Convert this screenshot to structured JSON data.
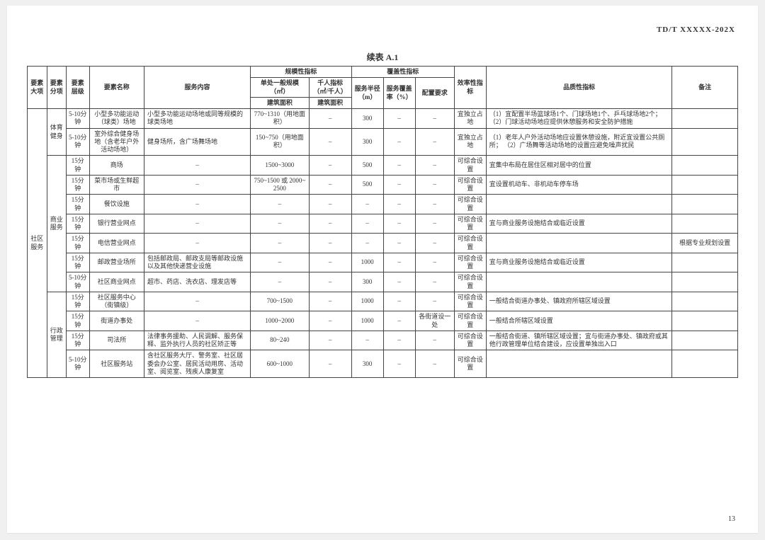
{
  "header": {
    "doc_id": "TD/T  XXXXX-202X",
    "table_title": "续表 A.1"
  },
  "footer": {
    "page_no": "13"
  },
  "cols": {
    "major": "要素大项",
    "sub": "要素分项",
    "level": "要素层级",
    "name": "要素名称",
    "content": "服务内容",
    "scale_group": "规模性指标",
    "coverage_group": "覆盖性指标",
    "scale_unit": "单处一般规模（㎡）",
    "per1000": "千人指标（㎡/千人）",
    "build_area": "建筑面积",
    "radius": "服务半径（m）",
    "coverage_rate": "服务覆盖率（%）",
    "config_req": "配置要求",
    "efficiency": "效率性指标",
    "quality": "品质性指标",
    "remark": "备注"
  },
  "body": {
    "major": "社区服务",
    "sub_sport": "体育健身",
    "sub_commerce": "商业服务",
    "sub_admin": "行政管理"
  },
  "style": {
    "border_color": "#444444",
    "text_color": "#333333",
    "background_color": "#ffffff",
    "header_fontsize_pt": 9,
    "body_fontsize_pt": 9,
    "title_fontsize_pt": 12
  },
  "rows": [
    {
      "level": "5-10分钟",
      "name": "小型多功能运动（球类）场地",
      "content": "小型多功能运动场地或同等规模的球类场地",
      "scale": "770~1310（用地面积）",
      "p1000": "–",
      "radius": "300",
      "cov": "–",
      "cfg": "–",
      "eff": "宜独立占地",
      "quality": "（1）宜配置半场篮球场1个、门球场地1个、乒乓球场地2个；\n（2）门球活动场地应提供休憩服务和安全防护措施",
      "remark": ""
    },
    {
      "level": "5-10分钟",
      "name": "室外综合健身场地（含老年户外活动场地）",
      "content": "健身场所，含广场舞场地",
      "scale": "150~750（用地面积）",
      "p1000": "–",
      "radius": "300",
      "cov": "–",
      "cfg": "–",
      "eff": "宜独立占地",
      "quality": "（1）老年人户外活动场地应设置休憩设施，附近宜设置公共厕所；\n（2）广场舞等活动场地的设置应避免噪声扰民",
      "remark": ""
    },
    {
      "level": "15分钟",
      "name": "商场",
      "content": "–",
      "scale": "1500~3000",
      "p1000": "–",
      "radius": "500",
      "cov": "–",
      "cfg": "–",
      "eff": "可综合设置",
      "quality": "宜集中布局在居住区相对居中的位置",
      "remark": ""
    },
    {
      "level": "15分钟",
      "name": "菜市场或生鲜超市",
      "content": "–",
      "scale": "750~1500 或 2000~2500",
      "p1000": "–",
      "radius": "500",
      "cov": "–",
      "cfg": "–",
      "eff": "可综合设置",
      "quality": "宜设置机动车、非机动车停车场",
      "remark": ""
    },
    {
      "level": "15分钟",
      "name": "餐饮设施",
      "content": "–",
      "scale": "–",
      "p1000": "–",
      "radius": "–",
      "cov": "–",
      "cfg": "–",
      "eff": "可综合设置",
      "quality": "",
      "remark": ""
    },
    {
      "level": "15分钟",
      "name": "银行营业网点",
      "content": "–",
      "scale": "–",
      "p1000": "–",
      "radius": "–",
      "cov": "–",
      "cfg": "–",
      "eff": "可综合设置",
      "quality": "宜与商业服务设施结合或临近设置",
      "remark": ""
    },
    {
      "level": "15分钟",
      "name": "电信营业网点",
      "content": "–",
      "scale": "–",
      "p1000": "–",
      "radius": "–",
      "cov": "–",
      "cfg": "–",
      "eff": "可综合设置",
      "quality": "",
      "remark": "根据专业规划设置"
    },
    {
      "level": "15分钟",
      "name": "邮政营业场所",
      "content": "包括邮政局、邮政支局等邮政设施以及其他快递营业设施",
      "scale": "–",
      "p1000": "–",
      "radius": "1000",
      "cov": "–",
      "cfg": "–",
      "eff": "可综合设置",
      "quality": "宜与商业服务设施结合或临近设置",
      "remark": ""
    },
    {
      "level": "5-10分钟",
      "name": "社区商业网点",
      "content": "超市、药店、洗衣店、理发店等",
      "scale": "–",
      "p1000": "–",
      "radius": "300",
      "cov": "–",
      "cfg": "–",
      "eff": "可综合设置",
      "quality": "",
      "remark": ""
    },
    {
      "level": "15分钟",
      "name": "社区服务中心（街镇级）",
      "content": "–",
      "scale": "700~1500",
      "p1000": "–",
      "radius": "1000",
      "cov": "–",
      "cfg": "–",
      "eff": "可综合设置",
      "quality": "一般结合街道办事处、镇政府所辖区域设置",
      "remark": ""
    },
    {
      "level": "15分钟",
      "name": "街道办事处",
      "content": "–",
      "scale": "1000~2000",
      "p1000": "–",
      "radius": "1000",
      "cov": "–",
      "cfg": "各街道设一处",
      "eff": "可综合设置",
      "quality": "一般结合所辖区域设置",
      "remark": ""
    },
    {
      "level": "15分钟",
      "name": "司法所",
      "content": "法律事务援助、人民调解、服务保释、监外执行人员的社区矫正等",
      "scale": "80~240",
      "p1000": "–",
      "radius": "–",
      "cov": "–",
      "cfg": "–",
      "eff": "可综合设置",
      "quality": "一般结合街道、镇所辖区域设置；宜与街道办事处、镇政府或其他行政管理单位结合建设，应设置单独出入口",
      "remark": ""
    },
    {
      "level": "5-10分钟",
      "name": "社区服务站",
      "content": "含社区服务大厅、警务室、社区居委会办公室、居民活动用房、活动室、阅览室、残疾人康复室",
      "scale": "600~1000",
      "p1000": "–",
      "radius": "300",
      "cov": "–",
      "cfg": "–",
      "eff": "可综合设置",
      "quality": "",
      "remark": ""
    }
  ]
}
